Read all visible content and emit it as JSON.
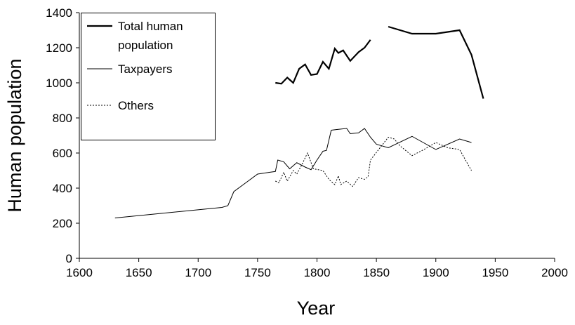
{
  "chart_data": {
    "type": "line",
    "xlabel": "Year",
    "ylabel": "Human population",
    "xlim": [
      1600,
      2000
    ],
    "xticks": [
      1600,
      1650,
      1700,
      1750,
      1800,
      1850,
      1900,
      1950,
      2000
    ],
    "ylim": [
      0,
      1400
    ],
    "yticks": [
      0,
      200,
      400,
      600,
      800,
      1000,
      1200,
      1400
    ],
    "grid": false,
    "legend": "upper left",
    "series": [
      {
        "name": "Total human population",
        "color": "#000000",
        "line_style": "solid",
        "line_width": 2.2,
        "x": [
          1765,
          1770,
          1775,
          1780,
          1785,
          1790,
          1795,
          1800,
          1805,
          1810,
          1815,
          1818,
          1822,
          1828,
          1835,
          1840,
          1845,
          1850,
          1860,
          1865,
          1880,
          1900,
          1910,
          1920,
          1930,
          1940
        ],
        "values": [
          1000,
          995,
          1030,
          1000,
          1080,
          1105,
          1045,
          1050,
          1120,
          1080,
          1195,
          1170,
          1185,
          1125,
          1175,
          1200,
          1245,
          null,
          1320,
          1310,
          1280,
          1280,
          1290,
          1300,
          1160,
          910
        ]
      },
      {
        "name": "Taxpayers",
        "color": "#000000",
        "line_style": "solid",
        "line_width": 1,
        "x": [
          1630,
          1720,
          1725,
          1730,
          1740,
          1750,
          1765,
          1767,
          1772,
          1777,
          1783,
          1790,
          1795,
          1800,
          1805,
          1808,
          1812,
          1818,
          1825,
          1828,
          1835,
          1840,
          1845,
          1850,
          1860,
          1880,
          1900,
          1920,
          1930
        ],
        "values": [
          230,
          290,
          300,
          380,
          430,
          480,
          495,
          560,
          550,
          510,
          545,
          520,
          505,
          560,
          610,
          615,
          730,
          735,
          740,
          710,
          715,
          740,
          690,
          650,
          630,
          695,
          620,
          680,
          660
        ]
      },
      {
        "name": "Others",
        "color": "#000000",
        "line_style": "dotted",
        "line_width": 1,
        "x": [
          1765,
          1768,
          1772,
          1775,
          1780,
          1783,
          1787,
          1792,
          1797,
          1805,
          1810,
          1815,
          1818,
          1820,
          1825,
          1830,
          1835,
          1840,
          1843,
          1845,
          1860,
          1865,
          1870,
          1880,
          1890,
          1900,
          1910,
          1920,
          1930
        ],
        "values": [
          440,
          430,
          490,
          440,
          500,
          480,
          530,
          600,
          510,
          500,
          450,
          420,
          470,
          420,
          440,
          410,
          460,
          450,
          465,
          560,
          690,
          680,
          640,
          585,
          620,
          660,
          630,
          620,
          500
        ]
      }
    ]
  }
}
